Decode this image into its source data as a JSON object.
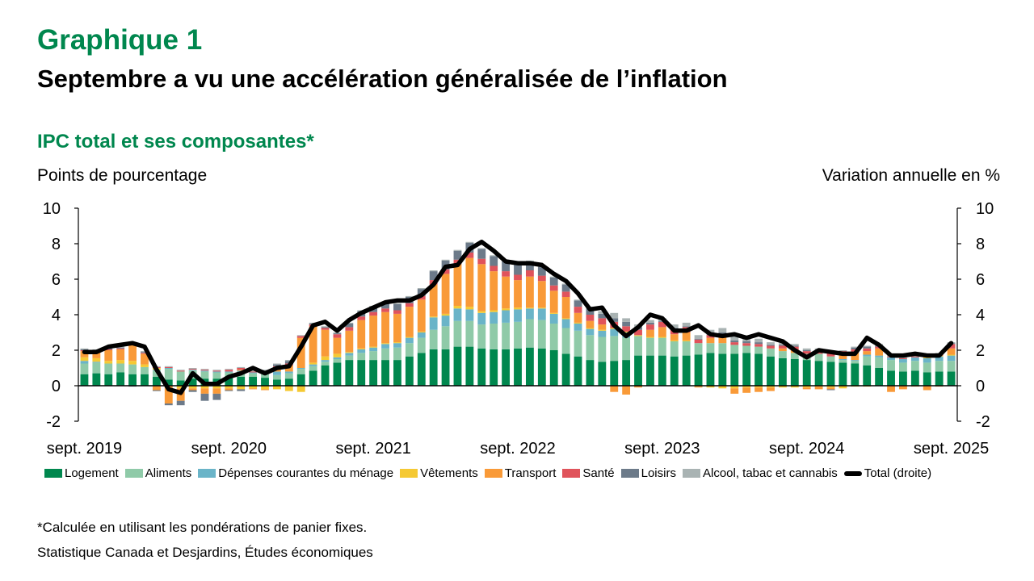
{
  "header": {
    "chart_number": "Graphique 1",
    "headline": "Septembre a vu une accélération généralisée de l’inflation",
    "subtitle": "IPC total et ses composantes*",
    "left_axis_label": "Points de pourcentage",
    "right_axis_label": "Variation annuelle en %"
  },
  "footer": {
    "note": "*Calculée en utilisant les pondérations de panier fixes.",
    "source": "Statistique Canada et Desjardins, Études économiques"
  },
  "chart_data": {
    "type": "bar",
    "stacked": true,
    "title": "IPC total et ses composantes*",
    "ylabel": "Points de pourcentage",
    "y2label": "Variation annuelle en %",
    "ylim": [
      -2,
      10
    ],
    "y2lim": [
      -2,
      10
    ],
    "yticks": [
      -2,
      0,
      2,
      4,
      6,
      8,
      10
    ],
    "xtick_labels": [
      "sept. 2019",
      "sept. 2020",
      "sept. 2021",
      "sept. 2022",
      "sept. 2023",
      "sept. 2024",
      "sept. 2025"
    ],
    "xtick_index": [
      0,
      12,
      24,
      36,
      48,
      60,
      72
    ],
    "legend_position": "bottom",
    "grid": false,
    "n_months": 73,
    "colors": {
      "Logement": "#00874E",
      "Aliments": "#8FCAA8",
      "Dépenses courantes du ménage": "#6AB4C8",
      "Vêtements": "#F5C933",
      "Transport": "#F99A38",
      "Santé": "#E0535B",
      "Loisirs": "#6C7A89",
      "Alcool, tabac et cannabis": "#A9B3B3",
      "Total (droite)": "#000000"
    },
    "series": [
      {
        "name": "Logement",
        "values": [
          0.65,
          0.7,
          0.65,
          0.75,
          0.65,
          0.65,
          0.5,
          0.35,
          0.3,
          0.4,
          0.4,
          0.4,
          0.45,
          0.5,
          0.5,
          0.45,
          0.35,
          0.4,
          0.65,
          0.85,
          1.15,
          1.3,
          1.45,
          1.45,
          1.45,
          1.45,
          1.45,
          1.65,
          1.85,
          2.05,
          2.05,
          2.2,
          2.2,
          2.1,
          2.05,
          2.05,
          2.1,
          2.15,
          2.1,
          2.0,
          1.8,
          1.65,
          1.45,
          1.35,
          1.4,
          1.45,
          1.7,
          1.7,
          1.7,
          1.65,
          1.7,
          1.75,
          1.85,
          1.8,
          1.8,
          1.85,
          1.8,
          1.65,
          1.55,
          1.5,
          1.45,
          1.4,
          1.35,
          1.3,
          1.25,
          1.15,
          1.0,
          0.85,
          0.8,
          0.85,
          0.75,
          0.8,
          0.8
        ]
      },
      {
        "name": "Aliments",
        "values": [
          0.6,
          0.6,
          0.6,
          0.5,
          0.55,
          0.4,
          0.35,
          0.6,
          0.5,
          0.45,
          0.4,
          0.35,
          0.3,
          0.3,
          0.2,
          0.25,
          0.25,
          0.3,
          0.3,
          0.25,
          0.2,
          0.2,
          0.25,
          0.4,
          0.5,
          0.65,
          0.7,
          0.75,
          0.85,
          1.1,
          1.3,
          1.45,
          1.45,
          1.35,
          1.45,
          1.5,
          1.5,
          1.6,
          1.6,
          1.5,
          1.45,
          1.45,
          1.4,
          1.4,
          1.4,
          1.25,
          1.1,
          1.0,
          1.0,
          0.85,
          0.8,
          0.65,
          0.55,
          0.6,
          0.5,
          0.4,
          0.4,
          0.45,
          0.4,
          0.35,
          0.35,
          0.4,
          0.3,
          0.15,
          0.15,
          0.5,
          0.6,
          0.6,
          0.5,
          0.55,
          0.55,
          0.6,
          0.6
        ]
      },
      {
        "name": "Dépenses courantes du ménage",
        "values": [
          0.15,
          0.05,
          0.0,
          0.0,
          0.0,
          0.0,
          0.05,
          0.05,
          0.0,
          0.05,
          0.05,
          0.05,
          0.05,
          0.05,
          0.05,
          0.05,
          0.2,
          0.1,
          0.05,
          0.1,
          0.1,
          0.1,
          0.15,
          0.2,
          0.2,
          0.25,
          0.25,
          0.3,
          0.3,
          0.7,
          0.6,
          0.7,
          0.65,
          0.65,
          0.65,
          0.7,
          0.7,
          0.6,
          0.65,
          0.55,
          0.5,
          0.4,
          0.35,
          0.35,
          0.4,
          0.3,
          0.0,
          0.0,
          0.0,
          0.0,
          0.0,
          0.0,
          0.0,
          0.0,
          0.0,
          0.0,
          0.0,
          0.0,
          0.0,
          0.0,
          0.0,
          0.0,
          0.0,
          0.05,
          0.05,
          0.1,
          0.1,
          0.15,
          0.2,
          0.2,
          0.25,
          0.25,
          0.3
        ]
      },
      {
        "name": "Vêtements",
        "values": [
          0.2,
          0.2,
          0.15,
          0.2,
          0.2,
          0.15,
          0.1,
          0.0,
          -0.15,
          -0.15,
          -0.15,
          -0.15,
          -0.15,
          -0.2,
          -0.15,
          -0.2,
          -0.2,
          -0.3,
          -0.35,
          0.1,
          0.2,
          0.2,
          0.05,
          0.05,
          0.05,
          0.05,
          0.05,
          0.05,
          0.05,
          0.05,
          0.1,
          0.15,
          0.15,
          0.1,
          0.1,
          0.1,
          0.1,
          0.05,
          0.05,
          0.05,
          0.05,
          0.05,
          0.05,
          0.05,
          0.05,
          0.05,
          0.05,
          0.05,
          0.05,
          0.05,
          0.05,
          -0.05,
          -0.1,
          -0.15,
          -0.15,
          -0.1,
          -0.1,
          -0.1,
          -0.1,
          -0.1,
          -0.1,
          -0.05,
          -0.1,
          -0.15,
          -0.05,
          -0.05,
          0.0,
          0.0,
          0.0,
          0.0,
          0.05,
          0.05,
          0.05
        ]
      },
      {
        "name": "Transport",
        "values": [
          0.35,
          0.35,
          0.6,
          0.6,
          0.95,
          0.6,
          -0.25,
          -1.0,
          -0.7,
          -0.1,
          -0.3,
          -0.3,
          -0.1,
          0.05,
          -0.05,
          -0.05,
          0.25,
          0.35,
          1.7,
          2.05,
          1.5,
          0.9,
          1.2,
          1.6,
          1.75,
          1.75,
          1.6,
          1.7,
          1.8,
          1.8,
          2.25,
          2.35,
          2.75,
          2.65,
          2.2,
          1.8,
          1.55,
          1.75,
          1.5,
          1.25,
          1.2,
          0.55,
          0.4,
          0.3,
          -0.35,
          -0.5,
          -0.1,
          0.4,
          0.55,
          0.35,
          0.45,
          -0.05,
          0.3,
          0.35,
          -0.3,
          -0.3,
          -0.25,
          -0.2,
          0.15,
          0.2,
          -0.1,
          -0.15,
          -0.1,
          0.3,
          0.45,
          0.2,
          0.4,
          -0.35,
          -0.2,
          -0.05,
          -0.25,
          -0.05,
          0.35
        ]
      },
      {
        "name": "Santé",
        "values": [
          0.05,
          0.05,
          0.05,
          0.05,
          0.05,
          0.05,
          0.05,
          0.05,
          0.05,
          0.05,
          0.05,
          0.05,
          0.1,
          0.1,
          0.05,
          0.05,
          0.05,
          0.1,
          0.1,
          0.1,
          0.1,
          0.2,
          0.2,
          0.2,
          0.2,
          0.2,
          0.2,
          0.2,
          0.2,
          0.25,
          0.25,
          0.25,
          0.3,
          0.3,
          0.3,
          0.3,
          0.3,
          0.35,
          0.3,
          0.3,
          0.3,
          0.35,
          0.35,
          0.35,
          0.35,
          0.3,
          0.3,
          0.3,
          0.3,
          0.3,
          0.3,
          0.2,
          0.15,
          0.15,
          0.15,
          0.15,
          0.15,
          0.15,
          0.15,
          0.15,
          0.15,
          0.2,
          0.2,
          0.15,
          0.15,
          0.15,
          0.1,
          0.05,
          0.05,
          0.05,
          0.1,
          0.1,
          0.25
        ]
      },
      {
        "name": "Loisirs",
        "values": [
          0.05,
          0.05,
          0.05,
          0.05,
          -0.05,
          0.05,
          -0.05,
          -0.1,
          -0.25,
          -0.1,
          -0.4,
          -0.35,
          -0.05,
          -0.1,
          0.0,
          0.05,
          0.1,
          0.15,
          0.0,
          0.05,
          0.05,
          0.05,
          0.2,
          0.3,
          0.3,
          0.3,
          0.35,
          0.35,
          0.4,
          0.5,
          0.5,
          0.5,
          0.55,
          0.55,
          0.55,
          0.55,
          0.55,
          0.5,
          0.5,
          0.45,
          0.4,
          0.35,
          0.35,
          0.25,
          0.2,
          0.25,
          0.15,
          0.1,
          0.05,
          0.05,
          0.05,
          0.05,
          0.05,
          0.1,
          0.1,
          0.1,
          0.1,
          0.05,
          0.05,
          0.05,
          0.05,
          0.0,
          -0.05,
          0.0,
          0.1,
          0.1,
          0.05,
          0.0,
          0.0,
          0.0,
          0.0,
          0.0,
          0.05
        ]
      },
      {
        "name": "Alcool, tabac et cannabis",
        "values": [
          0.05,
          0.05,
          0.05,
          0.05,
          0.05,
          0.05,
          0.05,
          0.05,
          0.05,
          0.05,
          0.05,
          0.05,
          0.05,
          0.05,
          0.05,
          0.05,
          0.05,
          0.05,
          0.05,
          0.05,
          0.05,
          0.05,
          0.05,
          0.05,
          0.05,
          0.05,
          0.05,
          0.05,
          0.05,
          0.05,
          0.05,
          0.05,
          0.05,
          0.05,
          0.05,
          0.05,
          0.05,
          0.05,
          0.05,
          0.05,
          0.05,
          0.05,
          0.1,
          0.15,
          0.3,
          0.2,
          0.15,
          0.15,
          0.15,
          0.2,
          0.2,
          0.2,
          0.25,
          0.25,
          0.25,
          0.2,
          0.2,
          0.15,
          0.1,
          0.1,
          0.1,
          0.1,
          0.1,
          0.05,
          0.05,
          0.05,
          0.1,
          0.1,
          0.1,
          0.05,
          0.05,
          0.05,
          0.05
        ]
      },
      {
        "name": "Total (droite)",
        "type": "line",
        "values": [
          1.9,
          1.9,
          2.2,
          2.3,
          2.4,
          2.2,
          0.9,
          -0.2,
          -0.4,
          0.7,
          0.1,
          0.1,
          0.5,
          0.7,
          1.0,
          0.7,
          1.0,
          1.1,
          2.2,
          3.4,
          3.6,
          3.1,
          3.7,
          4.1,
          4.4,
          4.7,
          4.8,
          4.8,
          5.1,
          5.7,
          6.7,
          6.8,
          7.7,
          8.1,
          7.6,
          7.0,
          6.9,
          6.9,
          6.8,
          6.3,
          5.9,
          5.2,
          4.3,
          4.4,
          3.4,
          2.8,
          3.3,
          4.0,
          3.8,
          3.1,
          3.1,
          3.4,
          2.9,
          2.8,
          2.9,
          2.7,
          2.9,
          2.7,
          2.5,
          2.0,
          1.6,
          2.0,
          1.9,
          1.8,
          1.8,
          2.7,
          2.3,
          1.7,
          1.7,
          1.8,
          1.7,
          1.7,
          2.4
        ]
      }
    ]
  },
  "legend": {
    "items": [
      {
        "label": "Logement",
        "color": "#00874E"
      },
      {
        "label": "Aliments",
        "color": "#8FCAA8"
      },
      {
        "label": "Dépenses courantes du ménage",
        "color": "#6AB4C8"
      },
      {
        "label": "Vêtements",
        "color": "#F5C933"
      },
      {
        "label": "Transport",
        "color": "#F99A38"
      },
      {
        "label": "Santé",
        "color": "#E0535B"
      },
      {
        "label": "Loisirs",
        "color": "#6C7A89"
      },
      {
        "label": "Alcool, tabac et cannabis",
        "color": "#A9B3B3"
      },
      {
        "label": "Total (droite)",
        "color": "#000000"
      }
    ]
  }
}
